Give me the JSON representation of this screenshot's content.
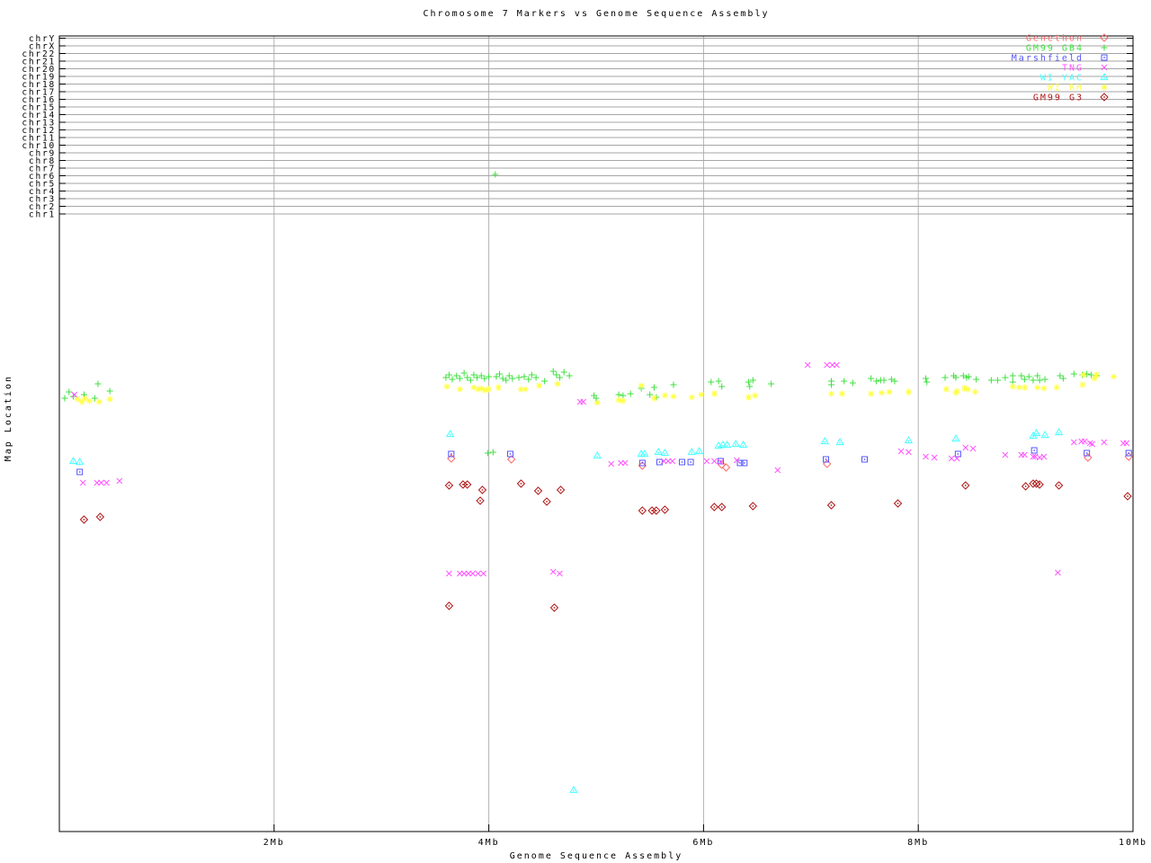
{
  "chart_data": {
    "type": "scatter",
    "title": "Chromosome 7 Markers vs Genome Sequence Assembly",
    "xlabel": "Genome Sequence Assembly",
    "ylabel": "Map Location",
    "xlim": [
      0,
      10
    ],
    "x_units": "Mb",
    "y_units": "screen_px (no numeric y scale shown; top band rows are chromosome lanes)",
    "grid": "vertical gridlines at labeled x ticks; horizontal gray lane lines for each chromosome row",
    "legend_position": "top-right",
    "x_ticks": [
      {
        "mb": 2,
        "label": "2Mb"
      },
      {
        "mb": 4,
        "label": "4Mb"
      },
      {
        "mb": 6,
        "label": "6Mb"
      },
      {
        "mb": 8,
        "label": "8Mb"
      },
      {
        "mb": 10,
        "label": "10Mb"
      }
    ],
    "chromosome_rows": [
      "chrY",
      "chrX",
      "chr22",
      "chr21",
      "chr20",
      "chr19",
      "chr18",
      "chr17",
      "chr16",
      "chr15",
      "chr14",
      "chr13",
      "chr12",
      "chr11",
      "chr10",
      "chr9",
      "chr8",
      "chr7",
      "chr6",
      "chr5",
      "chr4",
      "chr3",
      "chr2",
      "chr1"
    ],
    "series": [
      {
        "name": "Genethon",
        "color": "#ff6b6b",
        "marker": "open-diamond",
        "points": [
          [
            3.65,
            510
          ],
          [
            4.21,
            511
          ],
          [
            5.43,
            518
          ],
          [
            6.17,
            517
          ],
          [
            6.21,
            520
          ],
          [
            7.15,
            516
          ],
          [
            9.58,
            509
          ],
          [
            9.96,
            508
          ]
        ]
      },
      {
        "name": "GM99 GB4",
        "color": "#3fe03f",
        "marker": "plus",
        "points": [
          [
            0.05,
            443
          ],
          [
            0.09,
            436
          ],
          [
            0.13,
            441
          ],
          [
            0.23,
            439
          ],
          [
            0.33,
            443
          ],
          [
            0.36,
            427
          ],
          [
            0.47,
            435
          ],
          [
            4.06,
            194
          ],
          [
            3.6,
            420
          ],
          [
            3.63,
            417
          ],
          [
            3.66,
            422
          ],
          [
            3.7,
            418
          ],
          [
            3.73,
            421
          ],
          [
            3.77,
            415
          ],
          [
            3.8,
            420
          ],
          [
            3.83,
            423
          ],
          [
            3.86,
            417
          ],
          [
            3.89,
            420
          ],
          [
            3.93,
            418
          ],
          [
            3.96,
            421
          ],
          [
            4.0,
            419
          ],
          [
            4.07,
            419
          ],
          [
            4.1,
            416
          ],
          [
            4.13,
            421
          ],
          [
            4.16,
            423
          ],
          [
            4.19,
            418
          ],
          [
            4.22,
            421
          ],
          [
            4.28,
            420
          ],
          [
            4.33,
            419
          ],
          [
            4.37,
            422
          ],
          [
            4.4,
            417
          ],
          [
            4.44,
            420
          ],
          [
            4.52,
            424
          ],
          [
            4.6,
            413
          ],
          [
            4.63,
            417
          ],
          [
            4.66,
            420
          ],
          [
            4.7,
            414
          ],
          [
            4.75,
            418
          ],
          [
            4.98,
            440
          ],
          [
            5.0,
            443
          ],
          [
            5.21,
            439
          ],
          [
            5.25,
            440
          ],
          [
            5.32,
            438
          ],
          [
            5.42,
            432
          ],
          [
            5.5,
            439
          ],
          [
            5.54,
            431
          ],
          [
            5.56,
            442
          ],
          [
            5.72,
            428
          ],
          [
            6.07,
            425
          ],
          [
            6.14,
            424
          ],
          [
            6.17,
            430
          ],
          [
            6.42,
            425
          ],
          [
            6.43,
            430
          ],
          [
            6.46,
            423
          ],
          [
            6.63,
            427
          ],
          [
            7.19,
            424
          ],
          [
            7.19,
            428
          ],
          [
            7.31,
            424
          ],
          [
            7.39,
            426
          ],
          [
            7.56,
            421
          ],
          [
            7.61,
            424
          ],
          [
            7.65,
            423
          ],
          [
            7.68,
            423
          ],
          [
            7.75,
            422
          ],
          [
            7.78,
            424
          ],
          [
            8.07,
            421
          ],
          [
            8.08,
            425
          ],
          [
            8.25,
            420
          ],
          [
            8.33,
            418
          ],
          [
            8.35,
            420
          ],
          [
            8.42,
            418
          ],
          [
            8.45,
            420
          ],
          [
            8.47,
            419
          ],
          [
            8.54,
            422
          ],
          [
            8.68,
            423
          ],
          [
            8.74,
            423
          ],
          [
            8.81,
            420
          ],
          [
            8.88,
            418
          ],
          [
            8.88,
            425
          ],
          [
            8.96,
            418
          ],
          [
            8.99,
            422
          ],
          [
            9.03,
            419
          ],
          [
            9.07,
            423
          ],
          [
            9.11,
            418
          ],
          [
            9.13,
            423
          ],
          [
            9.18,
            422
          ],
          [
            9.32,
            418
          ],
          [
            9.35,
            421
          ],
          [
            9.45,
            416
          ],
          [
            9.53,
            417
          ],
          [
            9.57,
            416
          ],
          [
            9.61,
            417
          ],
          [
            9.66,
            418
          ],
          [
            3.99,
            504
          ],
          [
            4.04,
            503
          ]
        ]
      },
      {
        "name": "Marshfield",
        "color": "#5555ff",
        "marker": "square-dot",
        "points": [
          [
            0.19,
            525
          ],
          [
            3.65,
            505
          ],
          [
            4.2,
            505
          ],
          [
            5.43,
            515
          ],
          [
            5.59,
            514
          ],
          [
            5.8,
            514
          ],
          [
            5.88,
            514
          ],
          [
            6.16,
            513
          ],
          [
            6.34,
            515
          ],
          [
            6.38,
            515
          ],
          [
            7.14,
            511
          ],
          [
            7.5,
            511
          ],
          [
            8.37,
            505
          ],
          [
            9.08,
            501
          ],
          [
            9.57,
            504
          ],
          [
            9.96,
            504
          ]
        ]
      },
      {
        "name": "TNG",
        "color": "#ff55ff",
        "marker": "cross",
        "points": [
          [
            0.14,
            439
          ],
          [
            0.22,
            537
          ],
          [
            0.35,
            537
          ],
          [
            0.39,
            537
          ],
          [
            0.44,
            537
          ],
          [
            0.56,
            535
          ],
          [
            3.63,
            638
          ],
          [
            3.73,
            638
          ],
          [
            3.77,
            638
          ],
          [
            3.81,
            638
          ],
          [
            3.85,
            638
          ],
          [
            3.9,
            638
          ],
          [
            3.95,
            638
          ],
          [
            4.6,
            636
          ],
          [
            4.66,
            638
          ],
          [
            4.85,
            447
          ],
          [
            4.88,
            447
          ],
          [
            5.14,
            516
          ],
          [
            5.23,
            515
          ],
          [
            5.27,
            515
          ],
          [
            5.63,
            513
          ],
          [
            5.67,
            513
          ],
          [
            5.71,
            513
          ],
          [
            6.03,
            513
          ],
          [
            6.1,
            513
          ],
          [
            6.16,
            514
          ],
          [
            6.31,
            512
          ],
          [
            6.69,
            523
          ],
          [
            6.97,
            406
          ],
          [
            7.15,
            406
          ],
          [
            7.2,
            406
          ],
          [
            7.24,
            406
          ],
          [
            7.84,
            502
          ],
          [
            7.91,
            503
          ],
          [
            8.07,
            508
          ],
          [
            8.15,
            509
          ],
          [
            8.31,
            510
          ],
          [
            8.36,
            510
          ],
          [
            8.44,
            498
          ],
          [
            8.51,
            499
          ],
          [
            8.81,
            506
          ],
          [
            8.96,
            506
          ],
          [
            8.99,
            506
          ],
          [
            9.07,
            508
          ],
          [
            9.09,
            508
          ],
          [
            9.13,
            509
          ],
          [
            9.17,
            508
          ],
          [
            9.3,
            637
          ],
          [
            9.45,
            492
          ],
          [
            9.52,
            491
          ],
          [
            9.55,
            491
          ],
          [
            9.6,
            493
          ],
          [
            9.62,
            494
          ],
          [
            9.73,
            492
          ],
          [
            9.91,
            493
          ],
          [
            9.94,
            493
          ]
        ]
      },
      {
        "name": "WI YAC",
        "color": "#44ffff",
        "marker": "triangle-dot",
        "points": [
          [
            0.13,
            513
          ],
          [
            0.19,
            514
          ],
          [
            3.64,
            483
          ],
          [
            4.79,
            879
          ],
          [
            5.01,
            507
          ],
          [
            5.42,
            505
          ],
          [
            5.45,
            505
          ],
          [
            5.58,
            503
          ],
          [
            5.64,
            504
          ],
          [
            5.89,
            503
          ],
          [
            5.96,
            502
          ],
          [
            6.14,
            496
          ],
          [
            6.18,
            495
          ],
          [
            6.22,
            495
          ],
          [
            6.3,
            494
          ],
          [
            6.37,
            495
          ],
          [
            7.13,
            491
          ],
          [
            7.27,
            492
          ],
          [
            7.91,
            490
          ],
          [
            8.35,
            488
          ],
          [
            9.07,
            485
          ],
          [
            9.1,
            482
          ],
          [
            9.18,
            484
          ],
          [
            9.31,
            481
          ]
        ]
      },
      {
        "name": "WI RH",
        "color": "#ffff40",
        "marker": "asterisk",
        "points": [
          [
            0.17,
            444
          ],
          [
            0.21,
            447
          ],
          [
            0.24,
            443
          ],
          [
            0.28,
            446
          ],
          [
            0.37,
            447
          ],
          [
            0.47,
            444
          ],
          [
            3.61,
            430
          ],
          [
            3.73,
            433
          ],
          [
            3.86,
            431
          ],
          [
            3.9,
            433
          ],
          [
            3.93,
            432
          ],
          [
            3.96,
            434
          ],
          [
            4.0,
            433
          ],
          [
            4.09,
            431
          ],
          [
            4.3,
            433
          ],
          [
            4.34,
            433
          ],
          [
            4.47,
            429
          ],
          [
            4.64,
            427
          ],
          [
            5.01,
            448
          ],
          [
            5.21,
            445
          ],
          [
            5.25,
            446
          ],
          [
            5.42,
            429
          ],
          [
            5.54,
            443
          ],
          [
            5.64,
            440
          ],
          [
            5.72,
            441
          ],
          [
            5.89,
            442
          ],
          [
            5.98,
            439
          ],
          [
            6.1,
            438
          ],
          [
            6.42,
            442
          ],
          [
            6.48,
            440
          ],
          [
            7.19,
            438
          ],
          [
            7.29,
            438
          ],
          [
            7.56,
            438
          ],
          [
            7.66,
            437
          ],
          [
            7.73,
            436
          ],
          [
            7.91,
            436
          ],
          [
            8.26,
            433
          ],
          [
            8.35,
            437
          ],
          [
            8.36,
            435
          ],
          [
            8.43,
            432
          ],
          [
            8.46,
            433
          ],
          [
            8.53,
            436
          ],
          [
            8.88,
            430
          ],
          [
            8.94,
            431
          ],
          [
            8.99,
            431
          ],
          [
            9.11,
            431
          ],
          [
            9.17,
            432
          ],
          [
            9.29,
            431
          ],
          [
            9.53,
            428
          ],
          [
            9.54,
            417
          ],
          [
            9.64,
            421
          ],
          [
            9.66,
            417
          ],
          [
            9.82,
            419
          ]
        ]
      },
      {
        "name": "GM99 G3",
        "color": "#b01717",
        "marker": "diamond-dot",
        "points": [
          [
            0.23,
            578
          ],
          [
            0.38,
            575
          ],
          [
            3.63,
            540
          ],
          [
            3.76,
            539
          ],
          [
            3.8,
            539
          ],
          [
            3.92,
            557
          ],
          [
            3.94,
            545
          ],
          [
            4.3,
            538
          ],
          [
            4.46,
            546
          ],
          [
            4.54,
            558
          ],
          [
            4.67,
            545
          ],
          [
            3.63,
            674
          ],
          [
            4.61,
            676
          ],
          [
            5.43,
            568
          ],
          [
            5.52,
            568
          ],
          [
            5.56,
            568
          ],
          [
            5.64,
            567
          ],
          [
            6.1,
            564
          ],
          [
            6.17,
            564
          ],
          [
            6.46,
            563
          ],
          [
            7.19,
            562
          ],
          [
            7.81,
            560
          ],
          [
            8.44,
            540
          ],
          [
            9.0,
            541
          ],
          [
            9.07,
            538
          ],
          [
            9.1,
            538
          ],
          [
            9.13,
            539
          ],
          [
            9.31,
            540
          ],
          [
            9.95,
            552
          ]
        ]
      }
    ]
  }
}
